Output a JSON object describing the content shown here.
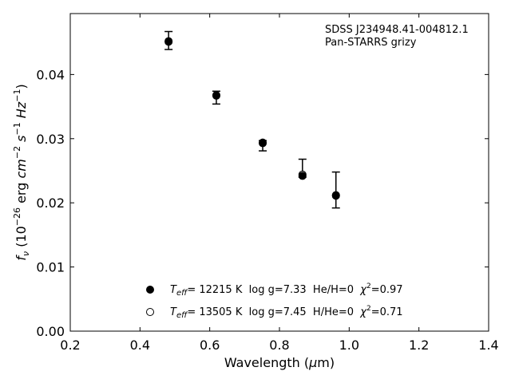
{
  "chart_data": {
    "type": "scatter",
    "annotation": [
      "SDSS J234948.41-004812.1",
      "Pan-STARRS grizy"
    ],
    "xlabel": {
      "prefix": "Wavelength (",
      "greek": "μ",
      "suffix": "m)"
    },
    "ylabel": {
      "f": "f",
      "f_sub": "ν",
      "open": " (10",
      "exp1": "−26",
      "erg": " erg ",
      "cm": "cm",
      "exp2": "−2",
      "s": " s",
      "exp3": "−1",
      "hz": " Hz",
      "exp4": "−1",
      "close": ")"
    },
    "xlim": [
      0.2,
      1.4
    ],
    "ylim": [
      0.0,
      0.0495
    ],
    "xticks": [
      0.2,
      0.4,
      0.6,
      0.8,
      1.0,
      1.2,
      1.4
    ],
    "xtick_labels": [
      "0.2",
      "0.4",
      "0.6",
      "0.8",
      "1.0",
      "1.2",
      "1.4"
    ],
    "yticks": [
      0.0,
      0.01,
      0.02,
      0.03,
      0.04
    ],
    "ytick_labels": [
      "0.00",
      "0.01",
      "0.02",
      "0.03",
      "0.04"
    ],
    "grid": false,
    "observed": {
      "x": [
        0.482,
        0.619,
        0.752,
        0.866,
        0.962
      ],
      "y": [
        0.0453,
        0.0364,
        0.0289,
        0.0242,
        0.022
      ],
      "yerr_low": [
        0.0014,
        0.001,
        0.0008,
        0.0002,
        0.0028
      ],
      "yerr_high": [
        0.0014,
        0.001,
        0.0008,
        0.0026,
        0.0028
      ]
    },
    "series": [
      {
        "marker": "filled-circle",
        "teff_label": "T",
        "teff_sub": "eff",
        "text": "= 12215 K  log g=7.33  He/H=0  ",
        "chi_label": "χ",
        "chi_sup": "2",
        "chi_text": "=0.97",
        "x": [
          0.482,
          0.619,
          0.752,
          0.866,
          0.962
        ],
        "y": [
          0.0451,
          0.0367,
          0.0293,
          0.0242,
          0.0211
        ]
      },
      {
        "marker": "open-circle",
        "teff_label": "T",
        "teff_sub": "eff",
        "text": "= 13505 K  log g=7.45  H/He=0  ",
        "chi_label": "χ",
        "chi_sup": "2",
        "chi_text": "=0.71",
        "x": [
          0.482,
          0.619,
          0.752,
          0.866,
          0.962
        ],
        "y": [
          0.0452,
          0.0368,
          0.0294,
          0.0244,
          0.0212
        ]
      }
    ],
    "legend_position": "lower center"
  }
}
